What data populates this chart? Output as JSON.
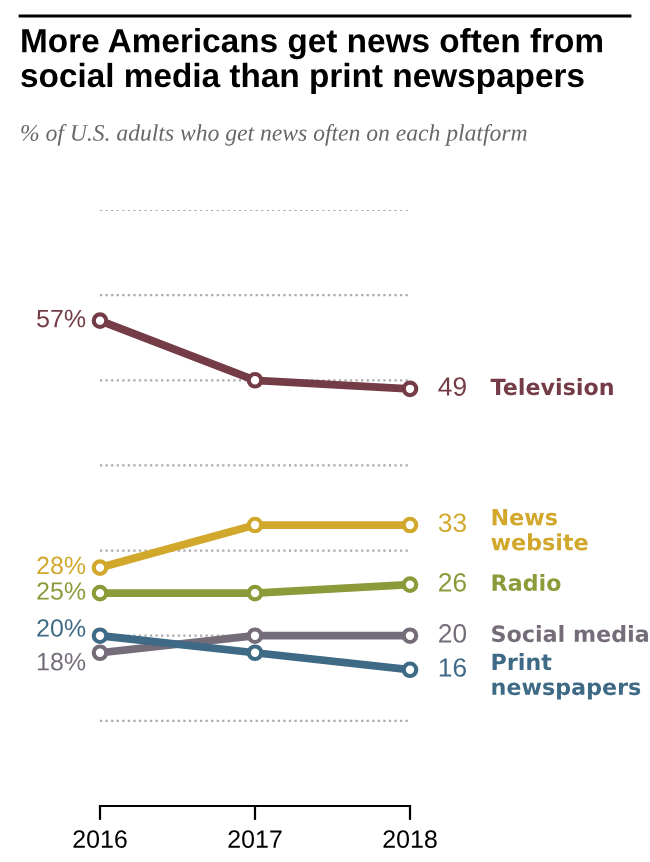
{
  "chart_data": {
    "type": "line",
    "title": "More Americans get news often from\nsocial media than print newspapers",
    "subtitle": "% of U.S. adults who get news often on each platform",
    "categories": [
      "2016",
      "2017",
      "2018"
    ],
    "series": [
      {
        "name": "Television",
        "color": "#743c46",
        "values": [
          57,
          50,
          49
        ],
        "value_labels": [
          "57%",
          null,
          "49"
        ]
      },
      {
        "name": "News\nwebsite",
        "color": "#d1a72c",
        "values": [
          28,
          33,
          33
        ],
        "value_labels": [
          "28%",
          null,
          "33"
        ]
      },
      {
        "name": "Radio",
        "color": "#8c9a3a",
        "values": [
          25,
          25,
          26
        ],
        "value_labels": [
          "25%",
          null,
          "26"
        ]
      },
      {
        "name": "Social media",
        "color": "#756c7a",
        "values": [
          18,
          20,
          20
        ],
        "value_labels": [
          "18%",
          null,
          "20"
        ]
      },
      {
        "name": "Print\nnewspapers",
        "color": "#3e6a85",
        "values": [
          20,
          18,
          16
        ],
        "value_labels": [
          "20%",
          null,
          "16"
        ]
      }
    ],
    "ylim": [
      0,
      70
    ],
    "yticks": [
      {
        "value": 10,
        "label": null
      },
      {
        "value": 20,
        "label": null
      },
      {
        "value": 30,
        "label": null
      },
      {
        "value": 40,
        "label": null
      },
      {
        "value": 50,
        "label": null
      },
      {
        "value": 60,
        "label": null
      },
      {
        "value": 70,
        "label": null
      }
    ],
    "tick_labels": "x",
    "grid": "y",
    "marker": "circle",
    "line_style": "solid",
    "legend": false
  }
}
